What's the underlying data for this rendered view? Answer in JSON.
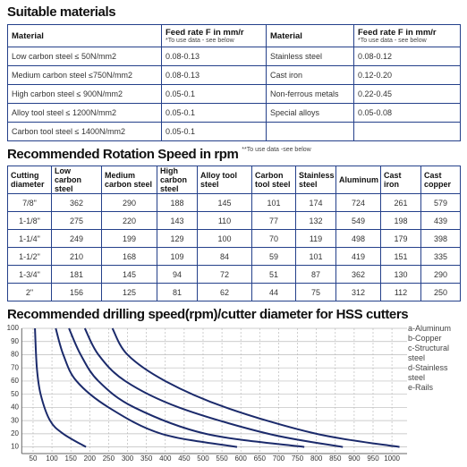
{
  "materials": {
    "title": "Suitable materials",
    "columns": [
      {
        "label": "Material"
      },
      {
        "label": "Feed rate F in mm/r",
        "note": "*To use data - see below"
      },
      {
        "label": "Material"
      },
      {
        "label": "Feed rate F in mm/r",
        "note": "*To use data - see below"
      }
    ],
    "rows": [
      [
        "Low carbon steel ≤ 50N/mm2",
        "0.08-0.13",
        "Stainless steel",
        "0.08-0.12"
      ],
      [
        "Medium carbon steel ≤750N/mm2",
        "0.08-0.13",
        "Cast iron",
        "0.12-0.20"
      ],
      [
        "High carbon steel ≤ 900N/mm2",
        "0.05-0.1",
        "Non-ferrous metals",
        "0.22-0.45"
      ],
      [
        "Alloy tool steel ≤ 1200N/mm2",
        "0.05-0.1",
        "Special alloys",
        "0.05-0.08"
      ],
      [
        "Carbon tool steel ≤ 1400N/mm2",
        "0.05-0.1"
      ]
    ]
  },
  "rotation": {
    "title": "Recommended Rotation Speed in rpm",
    "note": "**To use data -see below",
    "columns": [
      "Cutting diameter",
      "Low carbon steel",
      "Medium carbon steel",
      "High carbon steel",
      "Alloy tool steel",
      "Carbon tool steel",
      "Stainless steel",
      "Aluminum",
      "Cast iron",
      "Cast copper"
    ],
    "rows": [
      [
        "7/8\"",
        362,
        290,
        188,
        145,
        101,
        174,
        724,
        261,
        579
      ],
      [
        "1-1/8\"",
        275,
        220,
        143,
        110,
        77,
        132,
        549,
        198,
        439
      ],
      [
        "1-1/4\"",
        249,
        199,
        129,
        100,
        70,
        119,
        498,
        179,
        398
      ],
      [
        "1-1/2\"",
        210,
        168,
        109,
        84,
        59,
        101,
        419,
        151,
        335
      ],
      [
        "1-3/4\"",
        181,
        145,
        94,
        72,
        51,
        87,
        362,
        130,
        290
      ],
      [
        "2\"",
        156,
        125,
        81,
        62,
        44,
        75,
        312,
        112,
        250
      ]
    ]
  },
  "chart_data": {
    "type": "line",
    "title": "Recommended drilling speed(rpm)/cutter diameter for HSS cutters",
    "series": [
      {
        "name": "a-Aluminum",
        "color": "#1b2a6b",
        "x": [
          260,
          300,
          400,
          560,
          800,
          1020
        ],
        "values": [
          100,
          80,
          60,
          40,
          20,
          10
        ]
      },
      {
        "name": "b-Copper",
        "color": "#1b2a6b",
        "x": [
          187,
          223,
          294,
          436,
          673,
          870
        ],
        "values": [
          100,
          80,
          60,
          40,
          20,
          10
        ]
      },
      {
        "name": "c-Structural steel",
        "color": "#1b2a6b",
        "x": [
          145,
          176,
          223,
          318,
          507,
          768
        ],
        "values": [
          100,
          80,
          60,
          40,
          20,
          10
        ]
      },
      {
        "name": "d-Stainless steel",
        "color": "#1b2a6b",
        "x": [
          110,
          130,
          165,
          250,
          390,
          590
        ],
        "values": [
          100,
          80,
          60,
          40,
          20,
          10
        ]
      },
      {
        "name": "e-Rails",
        "color": "#1b2a6b",
        "x": [
          55,
          60,
          70,
          95,
          130,
          190
        ],
        "values": [
          100,
          70,
          50,
          30,
          20,
          10
        ]
      }
    ],
    "xlim": [
      20,
      1040
    ],
    "xticks": [
      50,
      100,
      150,
      200,
      250,
      300,
      350,
      400,
      450,
      500,
      550,
      600,
      650,
      700,
      750,
      800,
      850,
      900,
      950,
      1000
    ],
    "ylim": [
      5,
      100
    ],
    "yticks": [
      10,
      20,
      30,
      40,
      50,
      60,
      70,
      80,
      90,
      100
    ],
    "grid": true,
    "legend": "right"
  }
}
